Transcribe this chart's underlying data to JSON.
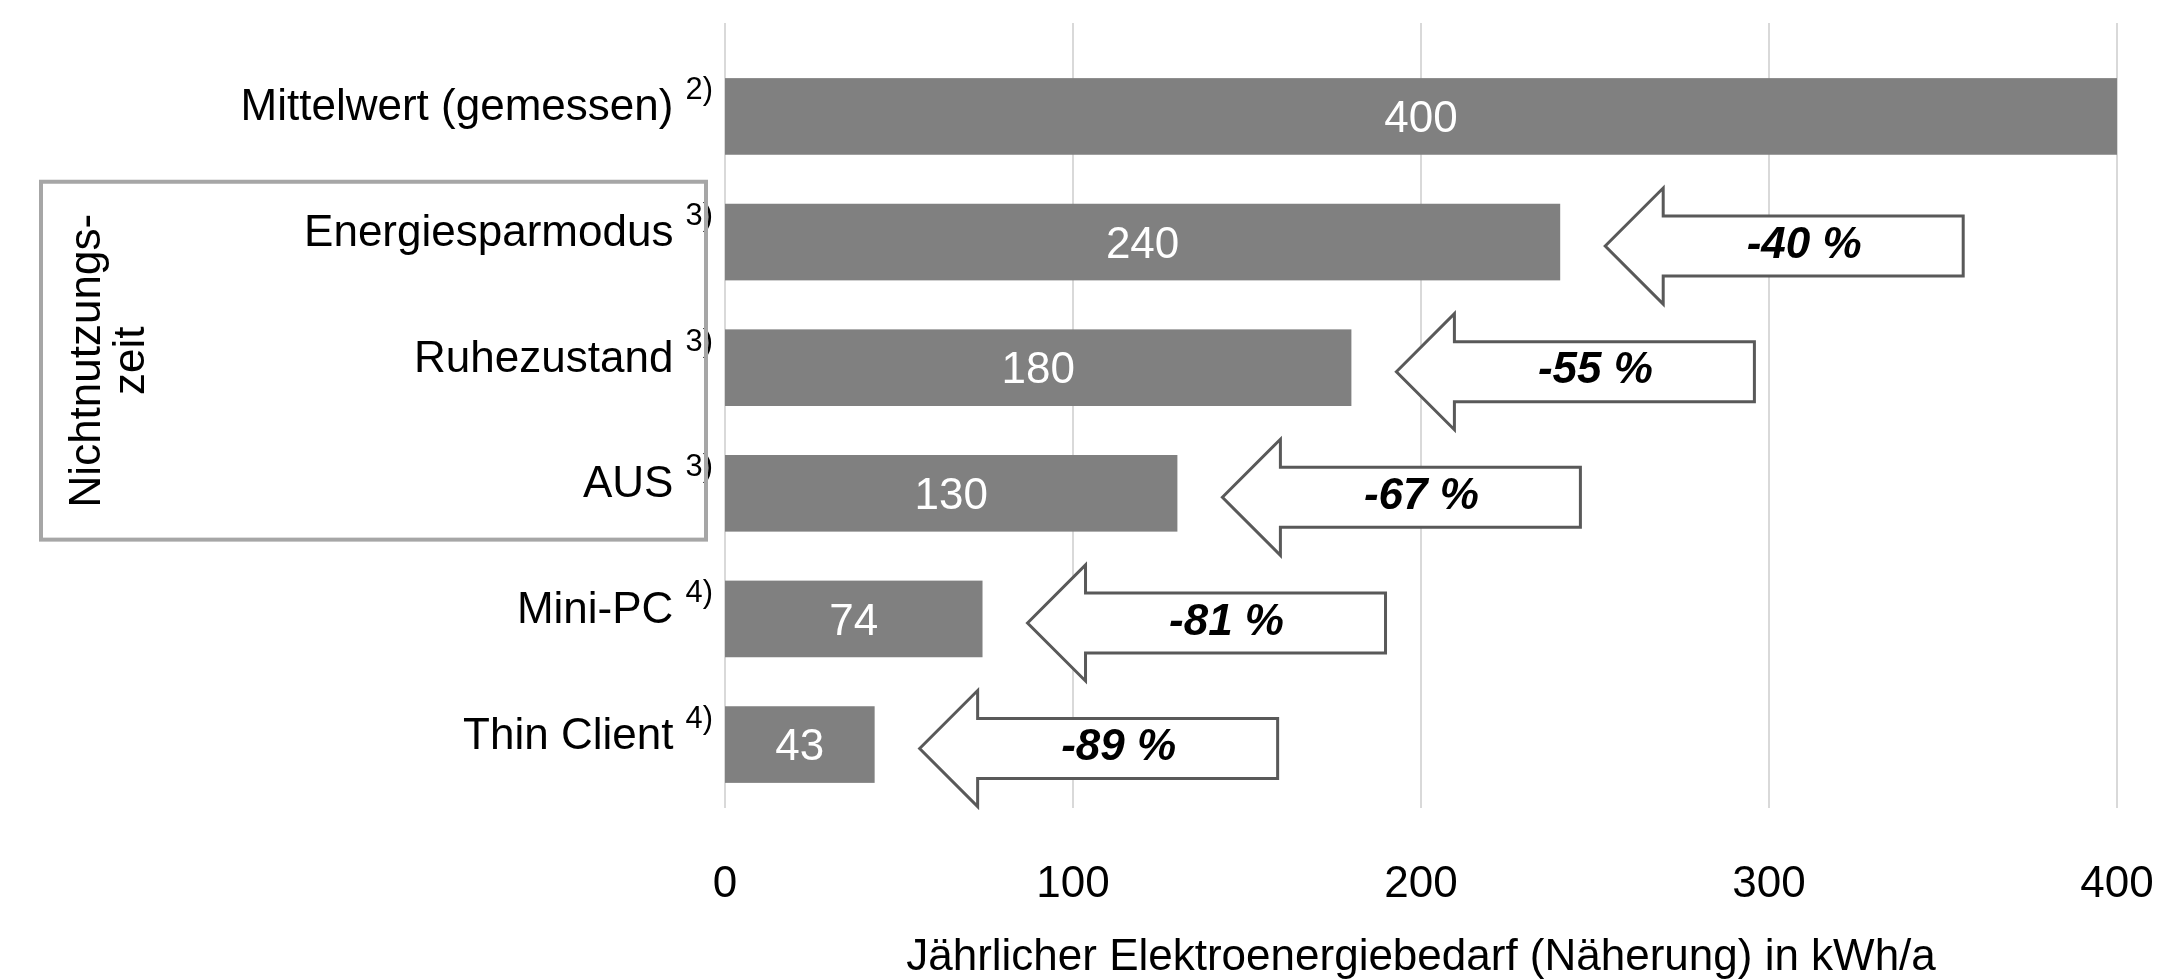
{
  "chart_data": {
    "type": "bar",
    "orientation": "horizontal",
    "xlabel": "Jährlicher Elektroenergiebedarf (Näherung) in kWh/a",
    "categories": [
      "Mittelwert (gemessen) $^{2)}$",
      "Energiesparmodus $^{3)}$",
      "Ruhezustand $^{3)}$",
      "AUS $^{3)}$",
      "Mini-PC $^{4)}$",
      "Thin Client $^{4)}$"
    ],
    "values": [
      400,
      240,
      180,
      130,
      74,
      43
    ],
    "color": "#808080",
    "data_labels": true,
    "xlim": [
      0,
      400
    ],
    "xticks": [
      0,
      100,
      200,
      300,
      400
    ],
    "grid": "x",
    "annotations": [
      "Nichtnutzungs-zeit",
      "-40 %",
      "-55 %",
      "-67 %",
      "-81 %",
      "-89 %"
    ]
  }
}
